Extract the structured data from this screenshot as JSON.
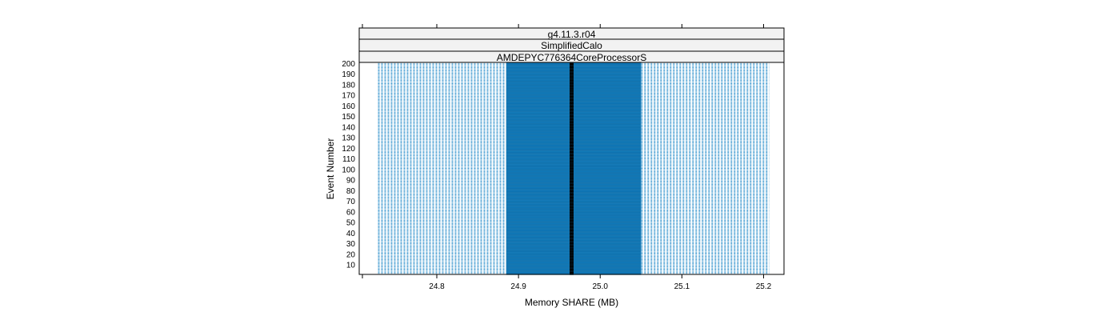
{
  "chart_data": {
    "type": "bar",
    "description_style": "horizontal box-per-event strip plot",
    "strips": [
      "g4.11.3.r04",
      "SimplifiedCalo",
      "AMDEPYC776364CoreProcessorS"
    ],
    "xlabel": "Memory SHARE (MB)",
    "ylabel": "Event Number",
    "xlim": [
      24.705,
      25.225
    ],
    "ylim": [
      1,
      201
    ],
    "x_ticks": [
      24.8,
      24.9,
      25.0,
      25.1,
      25.2
    ],
    "x_tick_labels": [
      "24.8",
      "24.9",
      "25.0",
      "25.1",
      "25.2"
    ],
    "y_ticks": [
      10,
      20,
      30,
      40,
      50,
      60,
      70,
      80,
      90,
      100,
      110,
      120,
      130,
      140,
      150,
      160,
      170,
      180,
      190,
      200
    ],
    "y_tick_labels": [
      "10",
      "20",
      "30",
      "40",
      "50",
      "60",
      "70",
      "80",
      "90",
      "100",
      "110",
      "120",
      "130",
      "140",
      "150",
      "160",
      "170",
      "180",
      "190",
      "200"
    ],
    "events": {
      "first": 1,
      "last": 200
    },
    "whisker_low": 24.728,
    "box_low": 24.885,
    "median": 24.965,
    "box_high": 25.05,
    "whisker_high": 25.207,
    "grid": false,
    "colors": {
      "box": "#0f78b8",
      "box_line": "#0a5a8c",
      "whisker": "#4a9fd2",
      "median": "#000000",
      "strip_bg": "#f2f2f2",
      "frame": "#000000"
    }
  }
}
